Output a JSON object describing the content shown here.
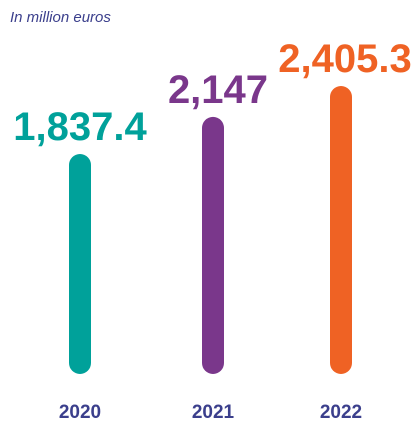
{
  "chart_data": {
    "type": "bar",
    "unit_label": "In million euros",
    "categories": [
      "2020",
      "2021",
      "2022"
    ],
    "values": [
      1837.4,
      2147,
      2405.3
    ],
    "value_labels": [
      "1,837.4",
      "2,147",
      "2,405.3"
    ],
    "colors": [
      "#00A19A",
      "#7A378B",
      "#EF6224"
    ],
    "category_label_color": "#3B3F8C",
    "unit_label_color": "#3B3F8C",
    "ylim": [
      0,
      2405.3
    ],
    "grid": false,
    "legend": "none"
  }
}
